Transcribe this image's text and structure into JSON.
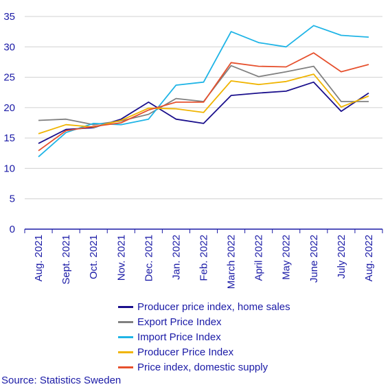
{
  "chart_data": {
    "type": "line",
    "categories": [
      "Aug. 2021",
      "Sept. 2021",
      "Oct. 2021",
      "Nov. 2021",
      "Dec. 2021",
      "Jan. 2022",
      "Feb. 2022",
      "March 2022",
      "April 2022",
      "May 2022",
      "June 2022",
      "July 2022",
      "Aug. 2022"
    ],
    "ylim": [
      0,
      35
    ],
    "yticks": [
      "0",
      "5",
      "10",
      "15",
      "20",
      "25",
      "30",
      "35"
    ],
    "grid": "horizontal",
    "legend_position": "bottom",
    "series": [
      {
        "name": "Producer price index, home sales",
        "color": "#1a0f8c",
        "values": [
          14.1,
          16.4,
          16.7,
          18.1,
          20.9,
          18.1,
          17.4,
          22.0,
          22.4,
          22.7,
          24.2,
          19.4,
          22.4
        ]
      },
      {
        "name": "Export Price Index",
        "color": "#808080",
        "values": [
          17.9,
          18.1,
          17.2,
          17.8,
          18.9,
          21.5,
          21.0,
          26.9,
          25.1,
          25.9,
          26.8,
          21.0,
          21.0
        ]
      },
      {
        "name": "Import Price Index",
        "color": "#1eb4e6",
        "values": [
          11.9,
          15.9,
          17.4,
          17.2,
          18.1,
          23.7,
          24.2,
          32.5,
          30.7,
          30.0,
          33.5,
          31.9,
          31.6
        ]
      },
      {
        "name": "Producer Price Index",
        "color": "#f0b400",
        "values": [
          15.7,
          17.2,
          16.8,
          17.9,
          19.9,
          19.8,
          19.2,
          24.4,
          23.8,
          24.3,
          25.5,
          20.1,
          21.9
        ]
      },
      {
        "name": "Price index, domestic supply",
        "color": "#e6502d",
        "values": [
          12.9,
          16.2,
          16.9,
          17.5,
          19.6,
          20.9,
          20.9,
          27.4,
          26.8,
          26.7,
          29.0,
          25.9,
          27.1
        ]
      }
    ]
  },
  "source": "Source: Statistics Sweden"
}
